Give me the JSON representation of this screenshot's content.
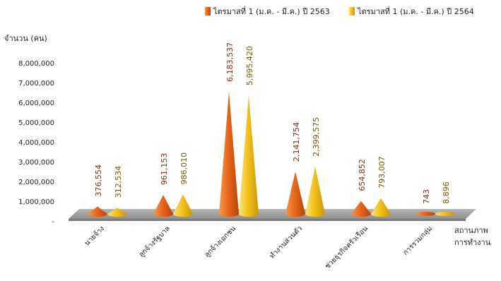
{
  "colors": {
    "series1": "#e8671c",
    "series2": "#f2c21a",
    "floor": "#a3a3a3"
  },
  "chart_data": {
    "type": "bar",
    "ylabel": "จำนวน (คน)",
    "xlabel_line1": "สถานภาพ",
    "xlabel_line2": "การทำงาน",
    "ylim": [
      0,
      8000000
    ],
    "yticks": [
      "8,000,000",
      "7,000,000",
      "6,000,000",
      "5,000,000",
      "4,000,000",
      "3,000,000",
      "2,000,000",
      "1,000,000",
      "-"
    ],
    "categories": [
      "นายจ้าง",
      "ลูกจ้างรัฐบาล",
      "ลูกจ้างเอกชน",
      "ทำงานส่วนตัว",
      "ช่วยธุรกิจครัวเรือน",
      "การรวมกลุ่ม"
    ],
    "legend_position": "top-right",
    "series": [
      {
        "name": "ไตรมาสที่ 1 (ม.ค. - มี.ค.) ปี 2563",
        "values": [
          376554,
          961153,
          6183537,
          2141754,
          654852,
          743
        ],
        "labels": [
          "376,554",
          "961,153",
          "6,183,537",
          "2,141,754",
          "654,852",
          "743"
        ]
      },
      {
        "name": "ไตรมาสที่ 1 (ม.ค. - มี.ค.) ปี 2564",
        "values": [
          312534,
          986010,
          5995420,
          2399575,
          793007,
          8896
        ],
        "labels": [
          "312,534",
          "986,010",
          "5,995,420",
          "2,399,575",
          "793,007",
          "8,896"
        ]
      }
    ]
  }
}
